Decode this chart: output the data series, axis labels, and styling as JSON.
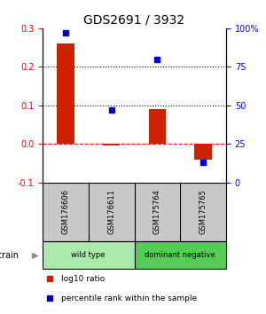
{
  "title": "GDS2691 / 3932",
  "samples": [
    "GSM176606",
    "GSM176611",
    "GSM175764",
    "GSM175765"
  ],
  "log10_ratio": [
    0.26,
    -0.005,
    0.09,
    -0.04
  ],
  "percentile_rank": [
    97,
    47,
    80,
    13
  ],
  "groups": [
    {
      "label": "wild type",
      "samples": [
        0,
        1
      ],
      "color": "#90ee90"
    },
    {
      "label": "dominant negative",
      "samples": [
        2,
        3
      ],
      "color": "#50c050"
    }
  ],
  "bar_color": "#cc2200",
  "dot_color": "#0000cc",
  "left_ylim": [
    -0.1,
    0.3
  ],
  "right_ylim": [
    0,
    100
  ],
  "left_yticks": [
    -0.1,
    0.0,
    0.1,
    0.2,
    0.3
  ],
  "right_yticks": [
    0,
    25,
    50,
    75,
    100
  ],
  "right_yticklabels": [
    "0",
    "25",
    "50",
    "75",
    "100%"
  ],
  "hlines": [
    0.1,
    0.2
  ],
  "zero_line": 0.0,
  "background_color": "#ffffff",
  "gray_box_color": "#c8c8c8",
  "wild_type_color": "#aaeaaa",
  "dominant_neg_color": "#55cc55"
}
